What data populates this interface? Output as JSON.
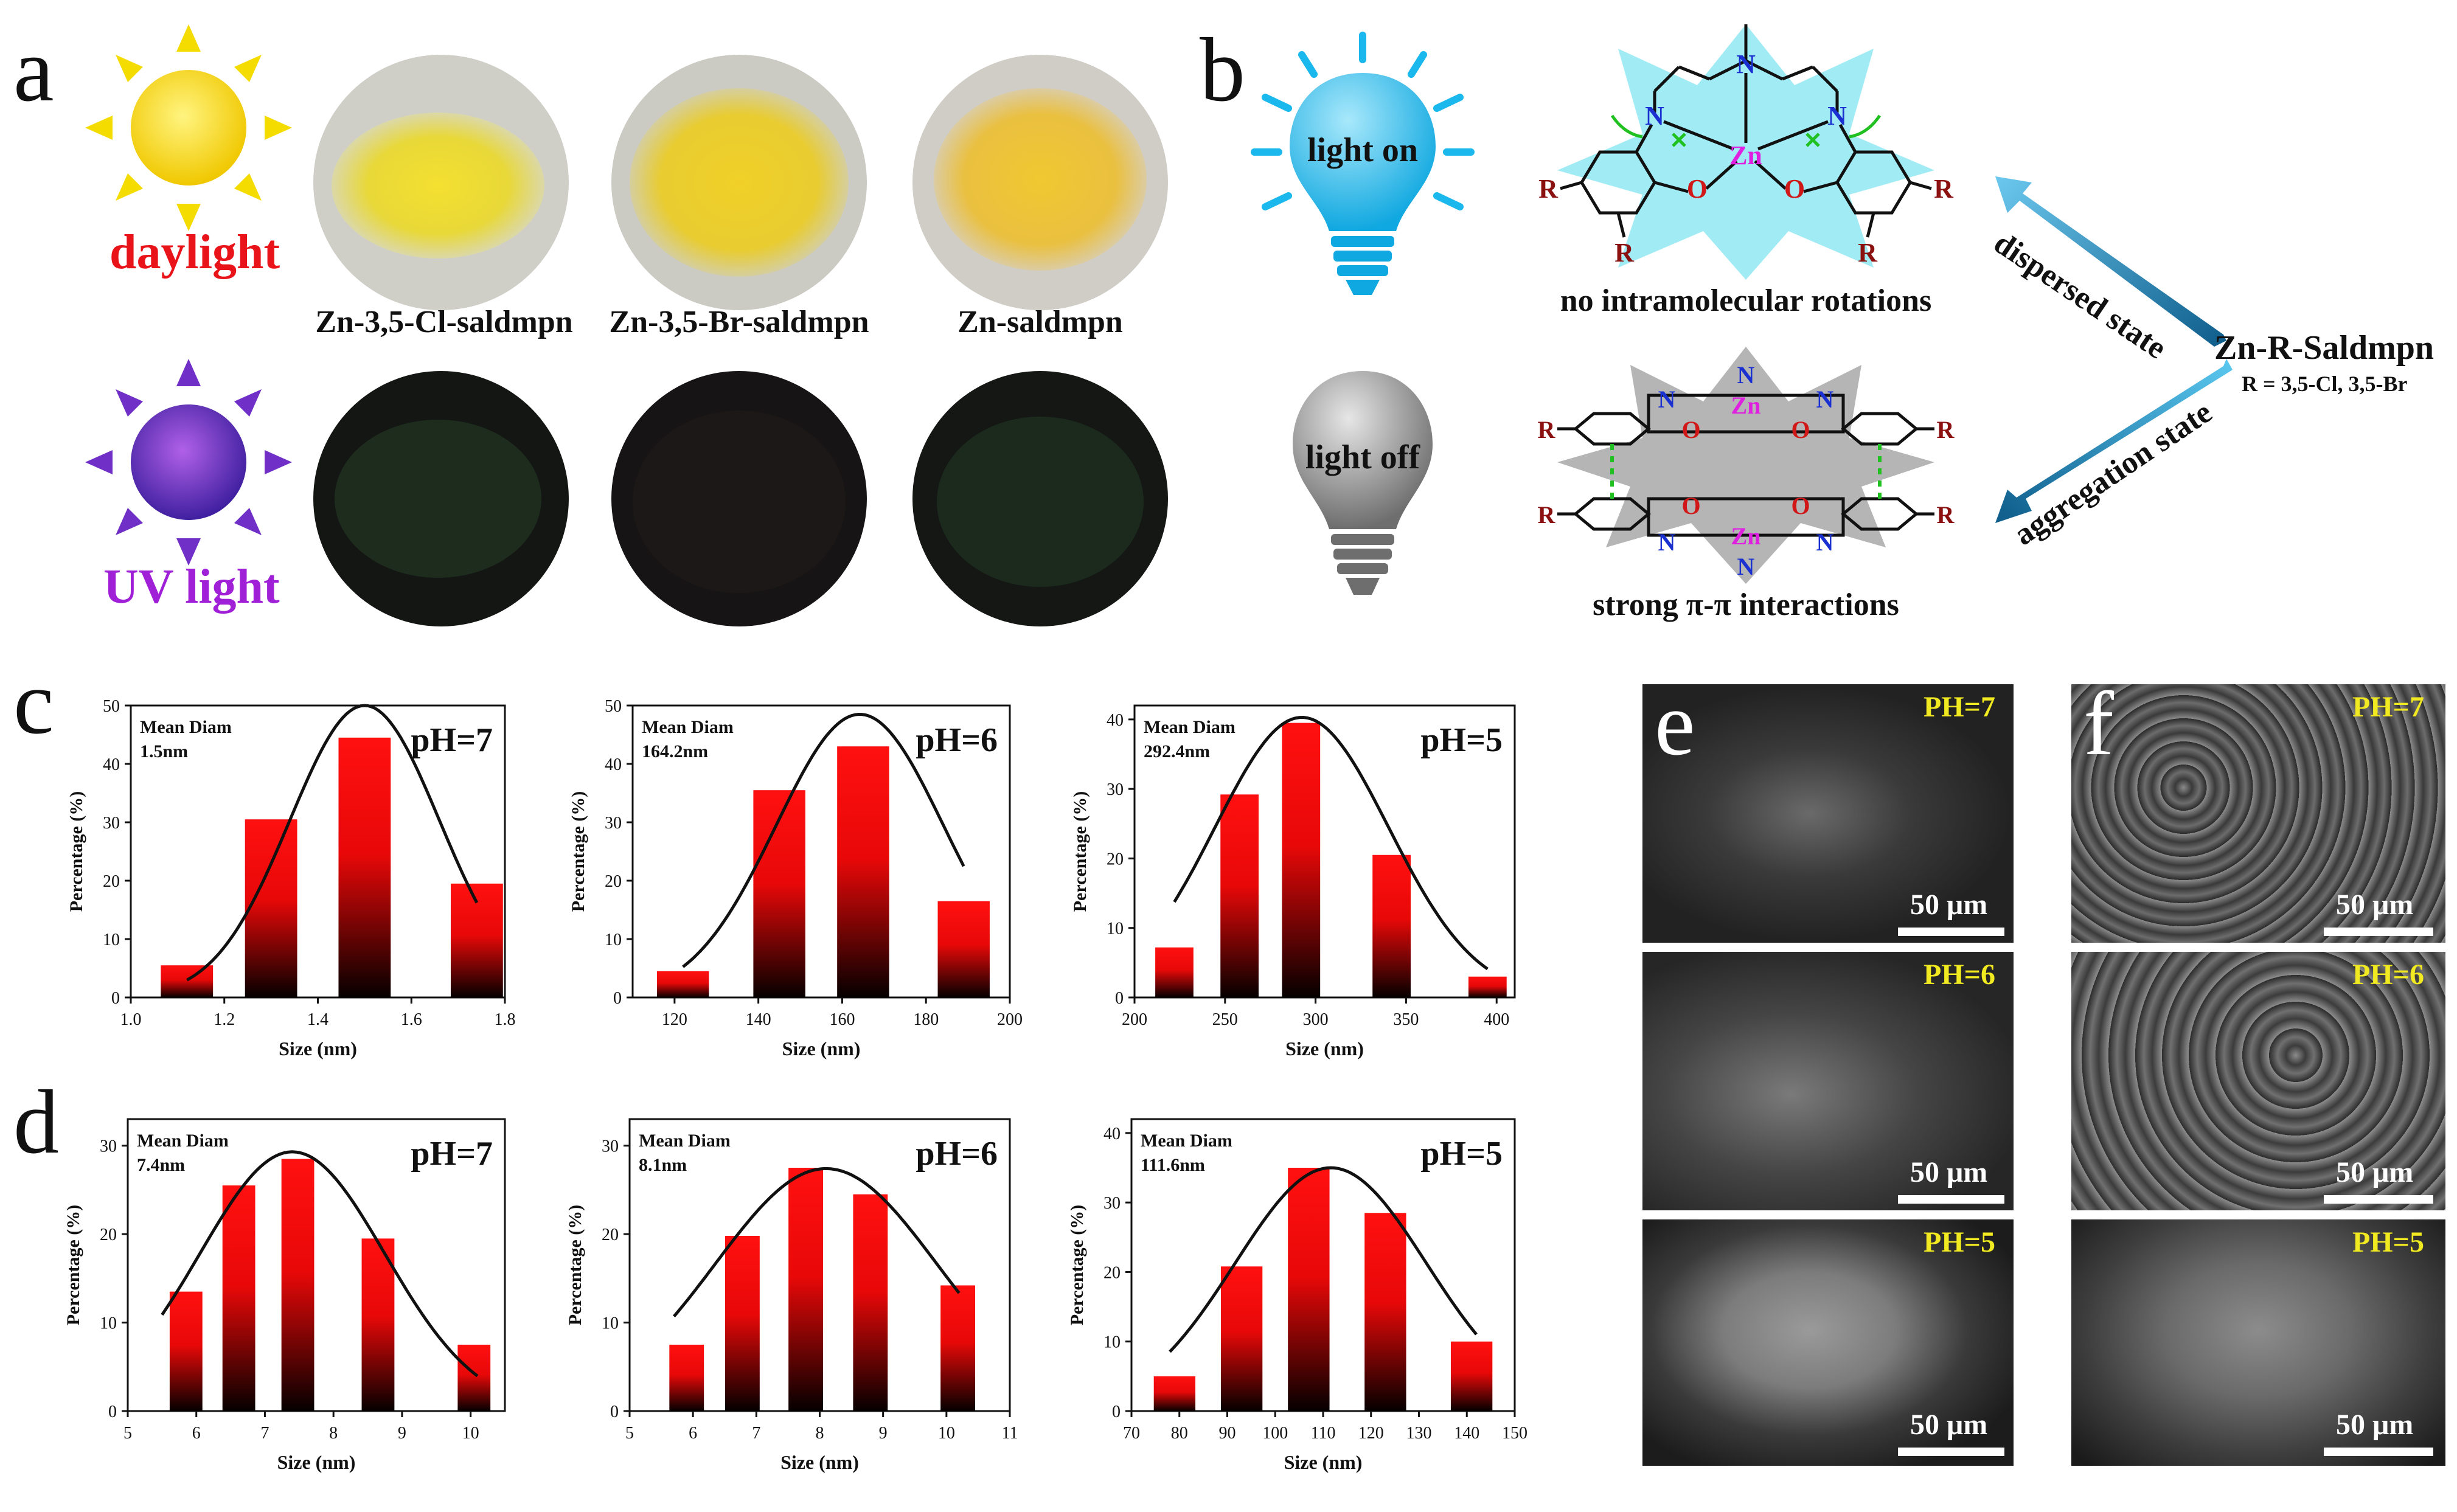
{
  "panels": {
    "a": "a",
    "b": "b",
    "c": "c",
    "d": "d",
    "e": "e",
    "f": "f"
  },
  "panel_a": {
    "daylight_label": "daylight",
    "uv_label": "UV light",
    "samples": [
      "Zn-3,5-Cl-saldmpn",
      "Zn-3,5-Br-saldmpn",
      "Zn-saldmpn"
    ],
    "colors": {
      "daylight": "#e8141a",
      "uv": "#a020d8",
      "sun": "#f5dc00",
      "uv_sun": "#7030c8"
    }
  },
  "panel_b": {
    "light_on": "light on",
    "light_off": "light off",
    "top_caption": "no intramolecular rotations",
    "bottom_caption": "strong π-π interactions",
    "compound": "Zn-R-Saldmpn",
    "compound_sub": "R = 3,5-Cl,  3,5-Br",
    "arrow_top": "dispersed state",
    "arrow_bottom": "aggregation state",
    "atom_labels": {
      "zn": "Zn",
      "n": "N",
      "o": "O",
      "r": "R"
    },
    "colors": {
      "bulb_on": "#1ab8ec",
      "bulb_off": "#8a8a8a",
      "glow": "#8fe8f2",
      "zn": "#e020e0",
      "n": "#1a30d0",
      "o": "#d01818",
      "r": "#8b1010",
      "arrow": "#1a7fb8"
    }
  },
  "scale_bar": "50 μm",
  "sem_e": [
    "PH=7",
    "PH=6",
    "PH=5"
  ],
  "sem_f": [
    "PH=7",
    "PH=6",
    "PH=5"
  ],
  "chart_data": [
    {
      "id": "c1",
      "type": "bar",
      "title": "pH=7",
      "annotation": "Mean Diam",
      "annotation_value": "1.5nm",
      "xlabel": "Size (nm)",
      "ylabel": "Percentage (%)",
      "xlim": [
        1.0,
        1.8
      ],
      "ylim": [
        0,
        50
      ],
      "xticks": [
        "1.0",
        "1.2",
        "1.4",
        "1.6",
        "1.8"
      ],
      "yticks": [
        "0",
        "10",
        "20",
        "30",
        "40",
        "50"
      ],
      "x": [
        1.12,
        1.3,
        1.5,
        1.74
      ],
      "values": [
        5.5,
        30.5,
        44.5,
        19.5
      ],
      "fit": [
        12.5,
        50,
        1.5,
        0.16
      ]
    },
    {
      "id": "c2",
      "type": "bar",
      "title": "pH=6",
      "annotation": "Mean Diam",
      "annotation_value": "164.2nm",
      "xlabel": "Size (nm)",
      "ylabel": "Percentage (%)",
      "xlim": [
        110,
        200
      ],
      "ylim": [
        0,
        50
      ],
      "xticks": [
        "120",
        "140",
        "160",
        "180",
        "200"
      ],
      "yticks": [
        "0",
        "10",
        "20",
        "30",
        "40",
        "50"
      ],
      "x": [
        122,
        145,
        165,
        189
      ],
      "values": [
        4.5,
        35.5,
        43,
        16.5
      ],
      "fit": [
        10.8,
        48.5,
        164.2,
        20
      ]
    },
    {
      "id": "c3",
      "type": "bar",
      "title": "pH=5",
      "annotation": "Mean Diam",
      "annotation_value": "292.4nm",
      "xlabel": "Size (nm)",
      "ylabel": "Percentage (%)",
      "xlim": [
        200,
        410
      ],
      "ylim": [
        0,
        42
      ],
      "xticks": [
        "200",
        "250",
        "300",
        "350",
        "400"
      ],
      "yticks": [
        "0",
        "10",
        "20",
        "30",
        "40"
      ],
      "x": [
        222,
        258,
        292,
        342,
        395
      ],
      "values": [
        7.2,
        29.2,
        39.5,
        20.5,
        3
      ],
      "fit": [
        9,
        40.3,
        292.4,
        48
      ]
    },
    {
      "id": "d1",
      "type": "bar",
      "title": "pH=7",
      "annotation": "Mean Diam",
      "annotation_value": "7.4nm",
      "xlabel": "Size (nm)",
      "ylabel": "Percentage (%)",
      "xlim": [
        5,
        10.5
      ],
      "ylim": [
        0,
        33
      ],
      "xticks": [
        "5",
        "6",
        "7",
        "8",
        "9",
        "10"
      ],
      "yticks": [
        "0",
        "10",
        "20",
        "30"
      ],
      "x": [
        5.85,
        6.62,
        7.48,
        8.65,
        10.05
      ],
      "values": [
        13.5,
        25.5,
        28.5,
        19.5,
        7.5
      ],
      "fit": [
        5.5,
        10.1,
        29.3,
        7.4,
        1.35
      ]
    },
    {
      "id": "d2",
      "type": "bar",
      "title": "pH=6",
      "annotation": "Mean Diam",
      "annotation_value": "8.1nm",
      "xlabel": "Size (nm)",
      "ylabel": "Percentage (%)",
      "xlim": [
        5,
        11
      ],
      "ylim": [
        0,
        33
      ],
      "xticks": [
        "5",
        "6",
        "7",
        "8",
        "9",
        "10",
        "11"
      ],
      "yticks": [
        "0",
        "10",
        "20",
        "30"
      ],
      "x": [
        5.9,
        6.78,
        7.78,
        8.8,
        10.18
      ],
      "values": [
        7.5,
        19.8,
        27.5,
        24.5,
        14.2
      ],
      "fit": [
        5.7,
        10.2,
        27.4,
        8.1,
        1.75
      ]
    },
    {
      "id": "d3",
      "type": "bar",
      "title": "pH=5",
      "annotation": "Mean Diam",
      "annotation_value": "111.6nm",
      "xlabel": "Size (nm)",
      "ylabel": "Percentage (%)",
      "xlim": [
        70,
        150
      ],
      "ylim": [
        0,
        42
      ],
      "xticks": [
        "70",
        "80",
        "90",
        "100",
        "110",
        "120",
        "130",
        "140",
        "150"
      ],
      "yticks": [
        "0",
        "10",
        "20",
        "30",
        "40"
      ],
      "x": [
        79,
        93,
        107,
        123,
        141
      ],
      "values": [
        5,
        20.8,
        35,
        28.5,
        10
      ],
      "fit": [
        78,
        142,
        35,
        111.6,
        20
      ]
    }
  ]
}
